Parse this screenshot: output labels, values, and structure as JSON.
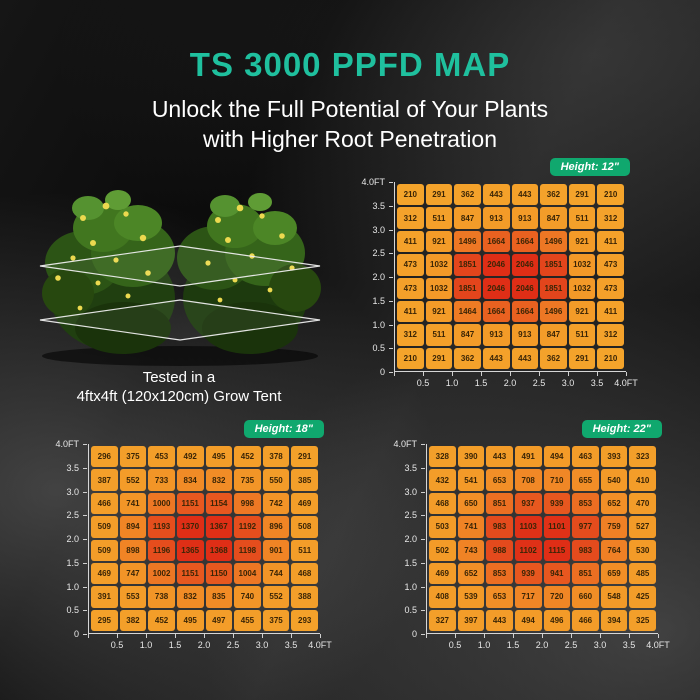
{
  "page": {
    "title": "TS 3000 PPFD MAP",
    "subtitle_line1": "Unlock the Full Potential of Your Plants",
    "subtitle_line2": "with Higher Root Penetration",
    "tent_caption_line1": "Tested in a",
    "tent_caption_line2": "4ftx4ft (120x120cm) Grow Tent"
  },
  "colors": {
    "title_accent": "#1FC09E",
    "badge_bg": "#10A86E",
    "cell_text": "#3A2506",
    "axis_line": "#D6D6D6",
    "heat_stops": [
      [
        0.0,
        "#F4A62C"
      ],
      [
        0.5,
        "#F39A28"
      ],
      [
        0.62,
        "#F18A26"
      ],
      [
        0.72,
        "#EE7A24"
      ],
      [
        0.8,
        "#EA6521"
      ],
      [
        0.88,
        "#E44B1D"
      ],
      [
        1.0,
        "#DF2E16"
      ]
    ]
  },
  "axes": {
    "y_labels": [
      "4.0FT",
      "3.5",
      "3.0",
      "2.5",
      "2.0",
      "1.5",
      "1.0",
      "0.5",
      "0"
    ],
    "x_labels": [
      "0.5",
      "1.0",
      "1.5",
      "2.0",
      "2.5",
      "3.0",
      "3.5",
      "4.0FT"
    ]
  },
  "chart_data": [
    {
      "type": "heatmap",
      "title": "Height: 12\"",
      "height_label": "12\"",
      "x_tick_labels": [
        "0",
        "0.5",
        "1.0",
        "1.5",
        "2.0",
        "2.5",
        "3.0",
        "3.5",
        "4.0FT"
      ],
      "y_tick_labels": [
        "4.0FT",
        "3.5",
        "3.0",
        "2.5",
        "2.0",
        "1.5",
        "1.0",
        "0.5",
        "0"
      ],
      "rows": [
        [
          210,
          291,
          362,
          443,
          443,
          362,
          291,
          210
        ],
        [
          312,
          511,
          847,
          913,
          913,
          847,
          511,
          312
        ],
        [
          411,
          921,
          1496,
          1664,
          1664,
          1496,
          921,
          411
        ],
        [
          473,
          1032,
          1851,
          2046,
          2046,
          1851,
          1032,
          473
        ],
        [
          473,
          1032,
          1851,
          2046,
          2046,
          1851,
          1032,
          473
        ],
        [
          411,
          921,
          1464,
          1664,
          1664,
          1496,
          921,
          411
        ],
        [
          312,
          511,
          847,
          913,
          913,
          847,
          511,
          312
        ],
        [
          210,
          291,
          362,
          443,
          443,
          362,
          291,
          210
        ]
      ]
    },
    {
      "type": "heatmap",
      "title": "Height: 18\"",
      "height_label": "18\"",
      "x_tick_labels": [
        "0",
        "0.5",
        "1.0",
        "1.5",
        "2.0",
        "2.5",
        "3.0",
        "3.5",
        "4.0FT"
      ],
      "y_tick_labels": [
        "4.0FT",
        "3.5",
        "3.0",
        "2.5",
        "2.0",
        "1.5",
        "1.0",
        "0.5",
        "0"
      ],
      "rows": [
        [
          296,
          375,
          453,
          492,
          495,
          452,
          378,
          291
        ],
        [
          387,
          552,
          733,
          834,
          832,
          735,
          550,
          385
        ],
        [
          466,
          741,
          1000,
          1151,
          1154,
          998,
          742,
          469
        ],
        [
          509,
          894,
          1193,
          1370,
          1367,
          1192,
          896,
          508
        ],
        [
          509,
          898,
          1196,
          1365,
          1368,
          1198,
          901,
          511
        ],
        [
          469,
          747,
          1002,
          1151,
          1150,
          1004,
          744,
          468
        ],
        [
          391,
          553,
          738,
          832,
          835,
          740,
          552,
          388
        ],
        [
          295,
          382,
          452,
          495,
          497,
          455,
          375,
          293
        ]
      ]
    },
    {
      "type": "heatmap",
      "title": "Height: 22\"",
      "height_label": "22\"",
      "x_tick_labels": [
        "0",
        "0.5",
        "1.0",
        "1.5",
        "2.0",
        "2.5",
        "3.0",
        "3.5",
        "4.0FT"
      ],
      "y_tick_labels": [
        "4.0FT",
        "3.5",
        "3.0",
        "2.5",
        "2.0",
        "1.5",
        "1.0",
        "0.5",
        "0"
      ],
      "rows": [
        [
          328,
          390,
          443,
          491,
          494,
          463,
          393,
          323
        ],
        [
          432,
          541,
          653,
          708,
          710,
          655,
          540,
          410
        ],
        [
          468,
          650,
          851,
          937,
          939,
          853,
          652,
          470
        ],
        [
          503,
          741,
          983,
          1103,
          1101,
          977,
          759,
          527
        ],
        [
          502,
          743,
          988,
          1102,
          1115,
          983,
          764,
          530
        ],
        [
          469,
          652,
          853,
          939,
          941,
          851,
          659,
          485
        ],
        [
          408,
          539,
          653,
          717,
          720,
          660,
          548,
          425
        ],
        [
          327,
          397,
          443,
          494,
          496,
          466,
          394,
          325
        ]
      ]
    }
  ]
}
